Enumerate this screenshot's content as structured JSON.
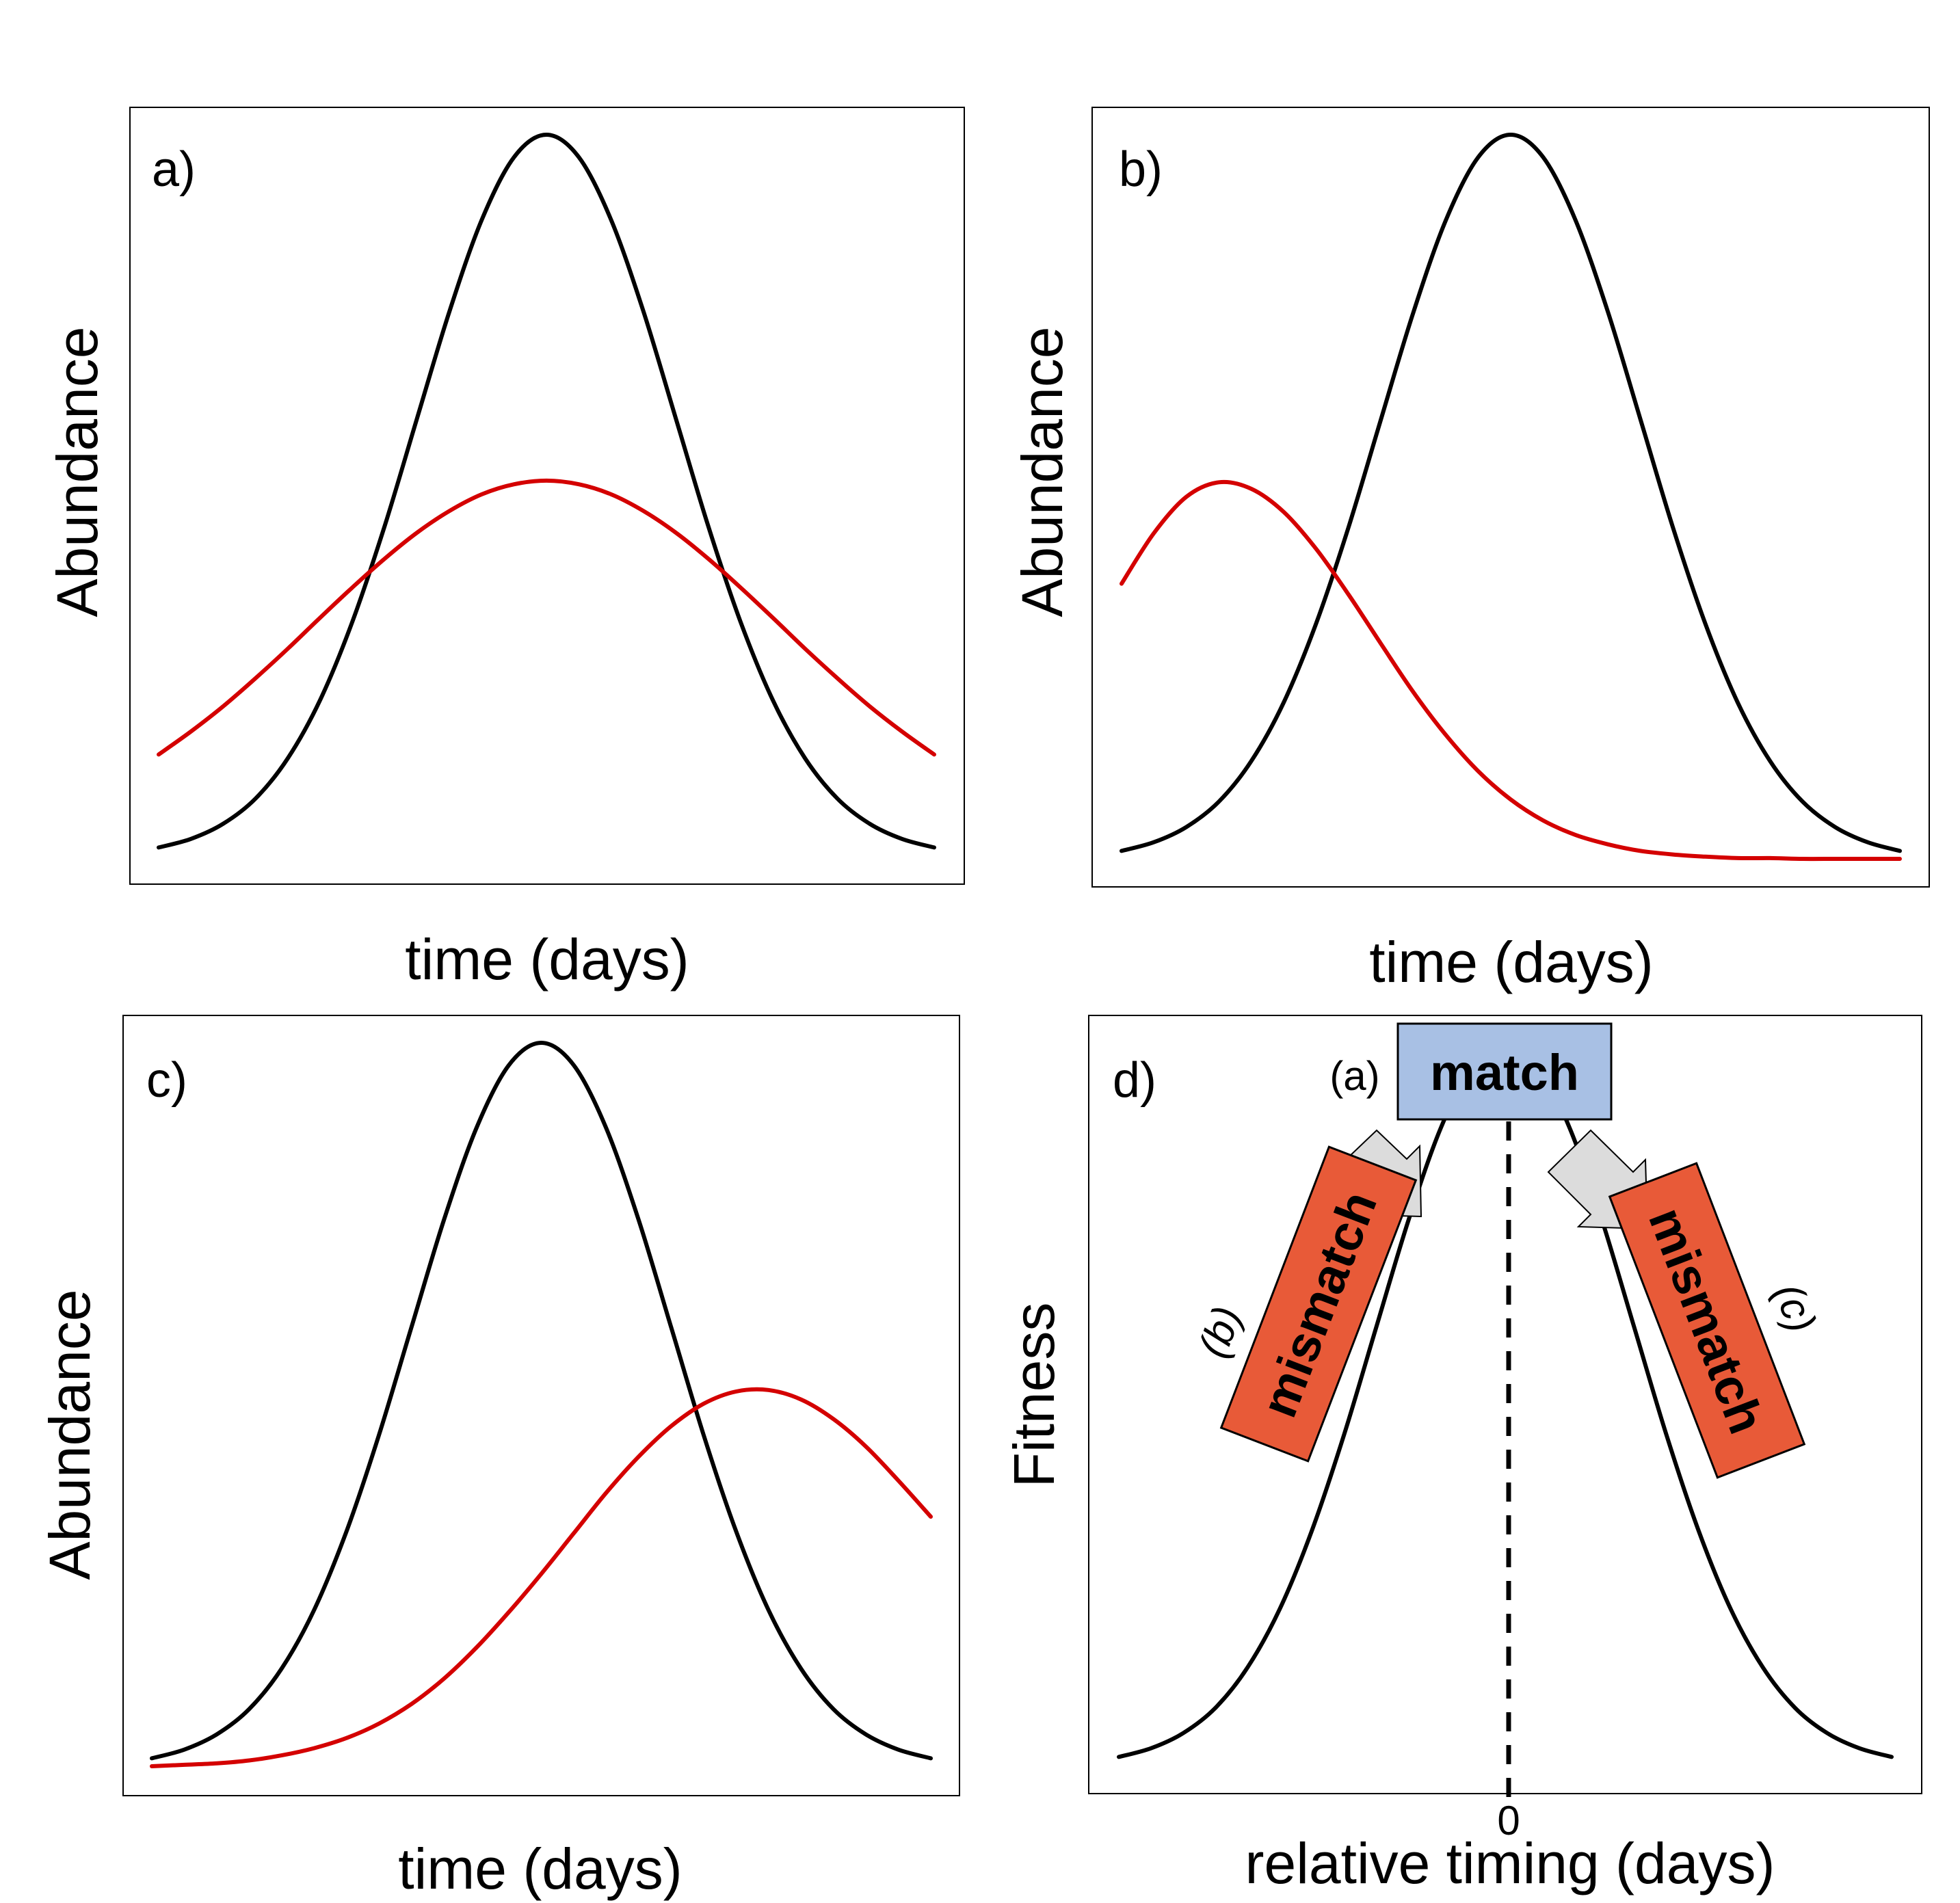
{
  "chart_data": [
    {
      "panel": "a)",
      "type": "line",
      "xlabel": "time (days)",
      "ylabel": "Abundance",
      "x": [
        -3.0,
        -2.75,
        -2.5,
        -2.25,
        -2.0,
        -1.75,
        -1.5,
        -1.25,
        -1.0,
        -0.75,
        -0.5,
        -0.25,
        0.0,
        0.25,
        0.5,
        0.75,
        1.0,
        1.25,
        1.5,
        1.75,
        2.0,
        2.25,
        2.5,
        2.75,
        3.0
      ],
      "series": [
        {
          "color": "#000000",
          "values": [
            0.011,
            0.023,
            0.044,
            0.079,
            0.135,
            0.216,
            0.325,
            0.458,
            0.607,
            0.755,
            0.882,
            0.969,
            1.0,
            0.969,
            0.882,
            0.755,
            0.607,
            0.458,
            0.325,
            0.216,
            0.135,
            0.079,
            0.044,
            0.023,
            0.011
          ]
        },
        {
          "color": "#d40000",
          "values": [
            0.14,
            0.172,
            0.207,
            0.246,
            0.287,
            0.33,
            0.372,
            0.412,
            0.448,
            0.478,
            0.501,
            0.515,
            0.52,
            0.515,
            0.501,
            0.478,
            0.448,
            0.412,
            0.372,
            0.33,
            0.287,
            0.246,
            0.207,
            0.172,
            0.14
          ]
        }
      ]
    },
    {
      "panel": "b)",
      "type": "line",
      "xlabel": "time (days)",
      "ylabel": "Abundance",
      "x": [
        -3.0,
        -2.75,
        -2.5,
        -2.25,
        -2.0,
        -1.75,
        -1.5,
        -1.25,
        -1.0,
        -0.75,
        -0.5,
        -0.25,
        0.0,
        0.25,
        0.5,
        0.75,
        1.0,
        1.25,
        1.5,
        1.75,
        2.0,
        2.25,
        2.5,
        2.75,
        3.0
      ],
      "series": [
        {
          "color": "#000000",
          "values": [
            0.011,
            0.023,
            0.044,
            0.079,
            0.135,
            0.216,
            0.325,
            0.458,
            0.607,
            0.755,
            0.882,
            0.969,
            1.0,
            0.969,
            0.882,
            0.755,
            0.607,
            0.458,
            0.325,
            0.216,
            0.135,
            0.079,
            0.044,
            0.023,
            0.011
          ]
        },
        {
          "color": "#d40000",
          "values": [
            0.38,
            0.45,
            0.5,
            0.52,
            0.511,
            0.479,
            0.428,
            0.365,
            0.297,
            0.23,
            0.171,
            0.121,
            0.082,
            0.053,
            0.033,
            0.02,
            0.011,
            0.006,
            0.003,
            0.001,
            0.001,
            0.0,
            0.0,
            0.0,
            0.0
          ]
        }
      ]
    },
    {
      "panel": "c)",
      "type": "line",
      "xlabel": "time (days)",
      "ylabel": "Abundance",
      "x": [
        -3.0,
        -2.75,
        -2.5,
        -2.25,
        -2.0,
        -1.75,
        -1.5,
        -1.25,
        -1.0,
        -0.75,
        -0.5,
        -0.25,
        0.0,
        0.25,
        0.5,
        0.75,
        1.0,
        1.25,
        1.5,
        1.75,
        2.0,
        2.25,
        2.5,
        2.75,
        3.0
      ],
      "series": [
        {
          "color": "#000000",
          "values": [
            0.011,
            0.023,
            0.044,
            0.079,
            0.135,
            0.216,
            0.325,
            0.458,
            0.607,
            0.755,
            0.882,
            0.969,
            1.0,
            0.969,
            0.882,
            0.755,
            0.607,
            0.458,
            0.325,
            0.216,
            0.135,
            0.079,
            0.044,
            0.023,
            0.011
          ]
        },
        {
          "color": "#d40000",
          "values": [
            0.0,
            0.002,
            0.004,
            0.008,
            0.015,
            0.025,
            0.039,
            0.059,
            0.086,
            0.121,
            0.164,
            0.213,
            0.266,
            0.322,
            0.378,
            0.428,
            0.47,
            0.501,
            0.518,
            0.52,
            0.507,
            0.48,
            0.442,
            0.395,
            0.345
          ]
        }
      ]
    },
    {
      "panel": "d)",
      "type": "line",
      "xlabel": "relative timing (days)",
      "ylabel": "Fitness",
      "xticks": [
        "0"
      ],
      "x": [
        -3.0,
        -2.75,
        -2.5,
        -2.25,
        -2.0,
        -1.75,
        -1.5,
        -1.25,
        -1.0,
        -0.75,
        -0.5,
        -0.25,
        0.0,
        0.25,
        0.5,
        0.75,
        1.0,
        1.25,
        1.5,
        1.75,
        2.0,
        2.25,
        2.5,
        2.75,
        3.0
      ],
      "series": [
        {
          "color": "#000000",
          "values": [
            0.011,
            0.023,
            0.044,
            0.079,
            0.135,
            0.216,
            0.325,
            0.458,
            0.607,
            0.755,
            0.882,
            0.969,
            1.0,
            0.969,
            0.882,
            0.755,
            0.607,
            0.458,
            0.325,
            0.216,
            0.135,
            0.079,
            0.044,
            0.023,
            0.011
          ]
        }
      ],
      "vline_x": 0,
      "annotations": {
        "match_box": "match",
        "match_tag": "(a)",
        "mismatch_left": "mismatch",
        "mismatch_left_tag": "(b)",
        "mismatch_right": "mismatch",
        "mismatch_right_tag": "(c)"
      },
      "colors": {
        "match_box": "#a8c0e4",
        "mismatch_box": "#e85a38",
        "arrow": "#dcdcdc"
      }
    }
  ]
}
